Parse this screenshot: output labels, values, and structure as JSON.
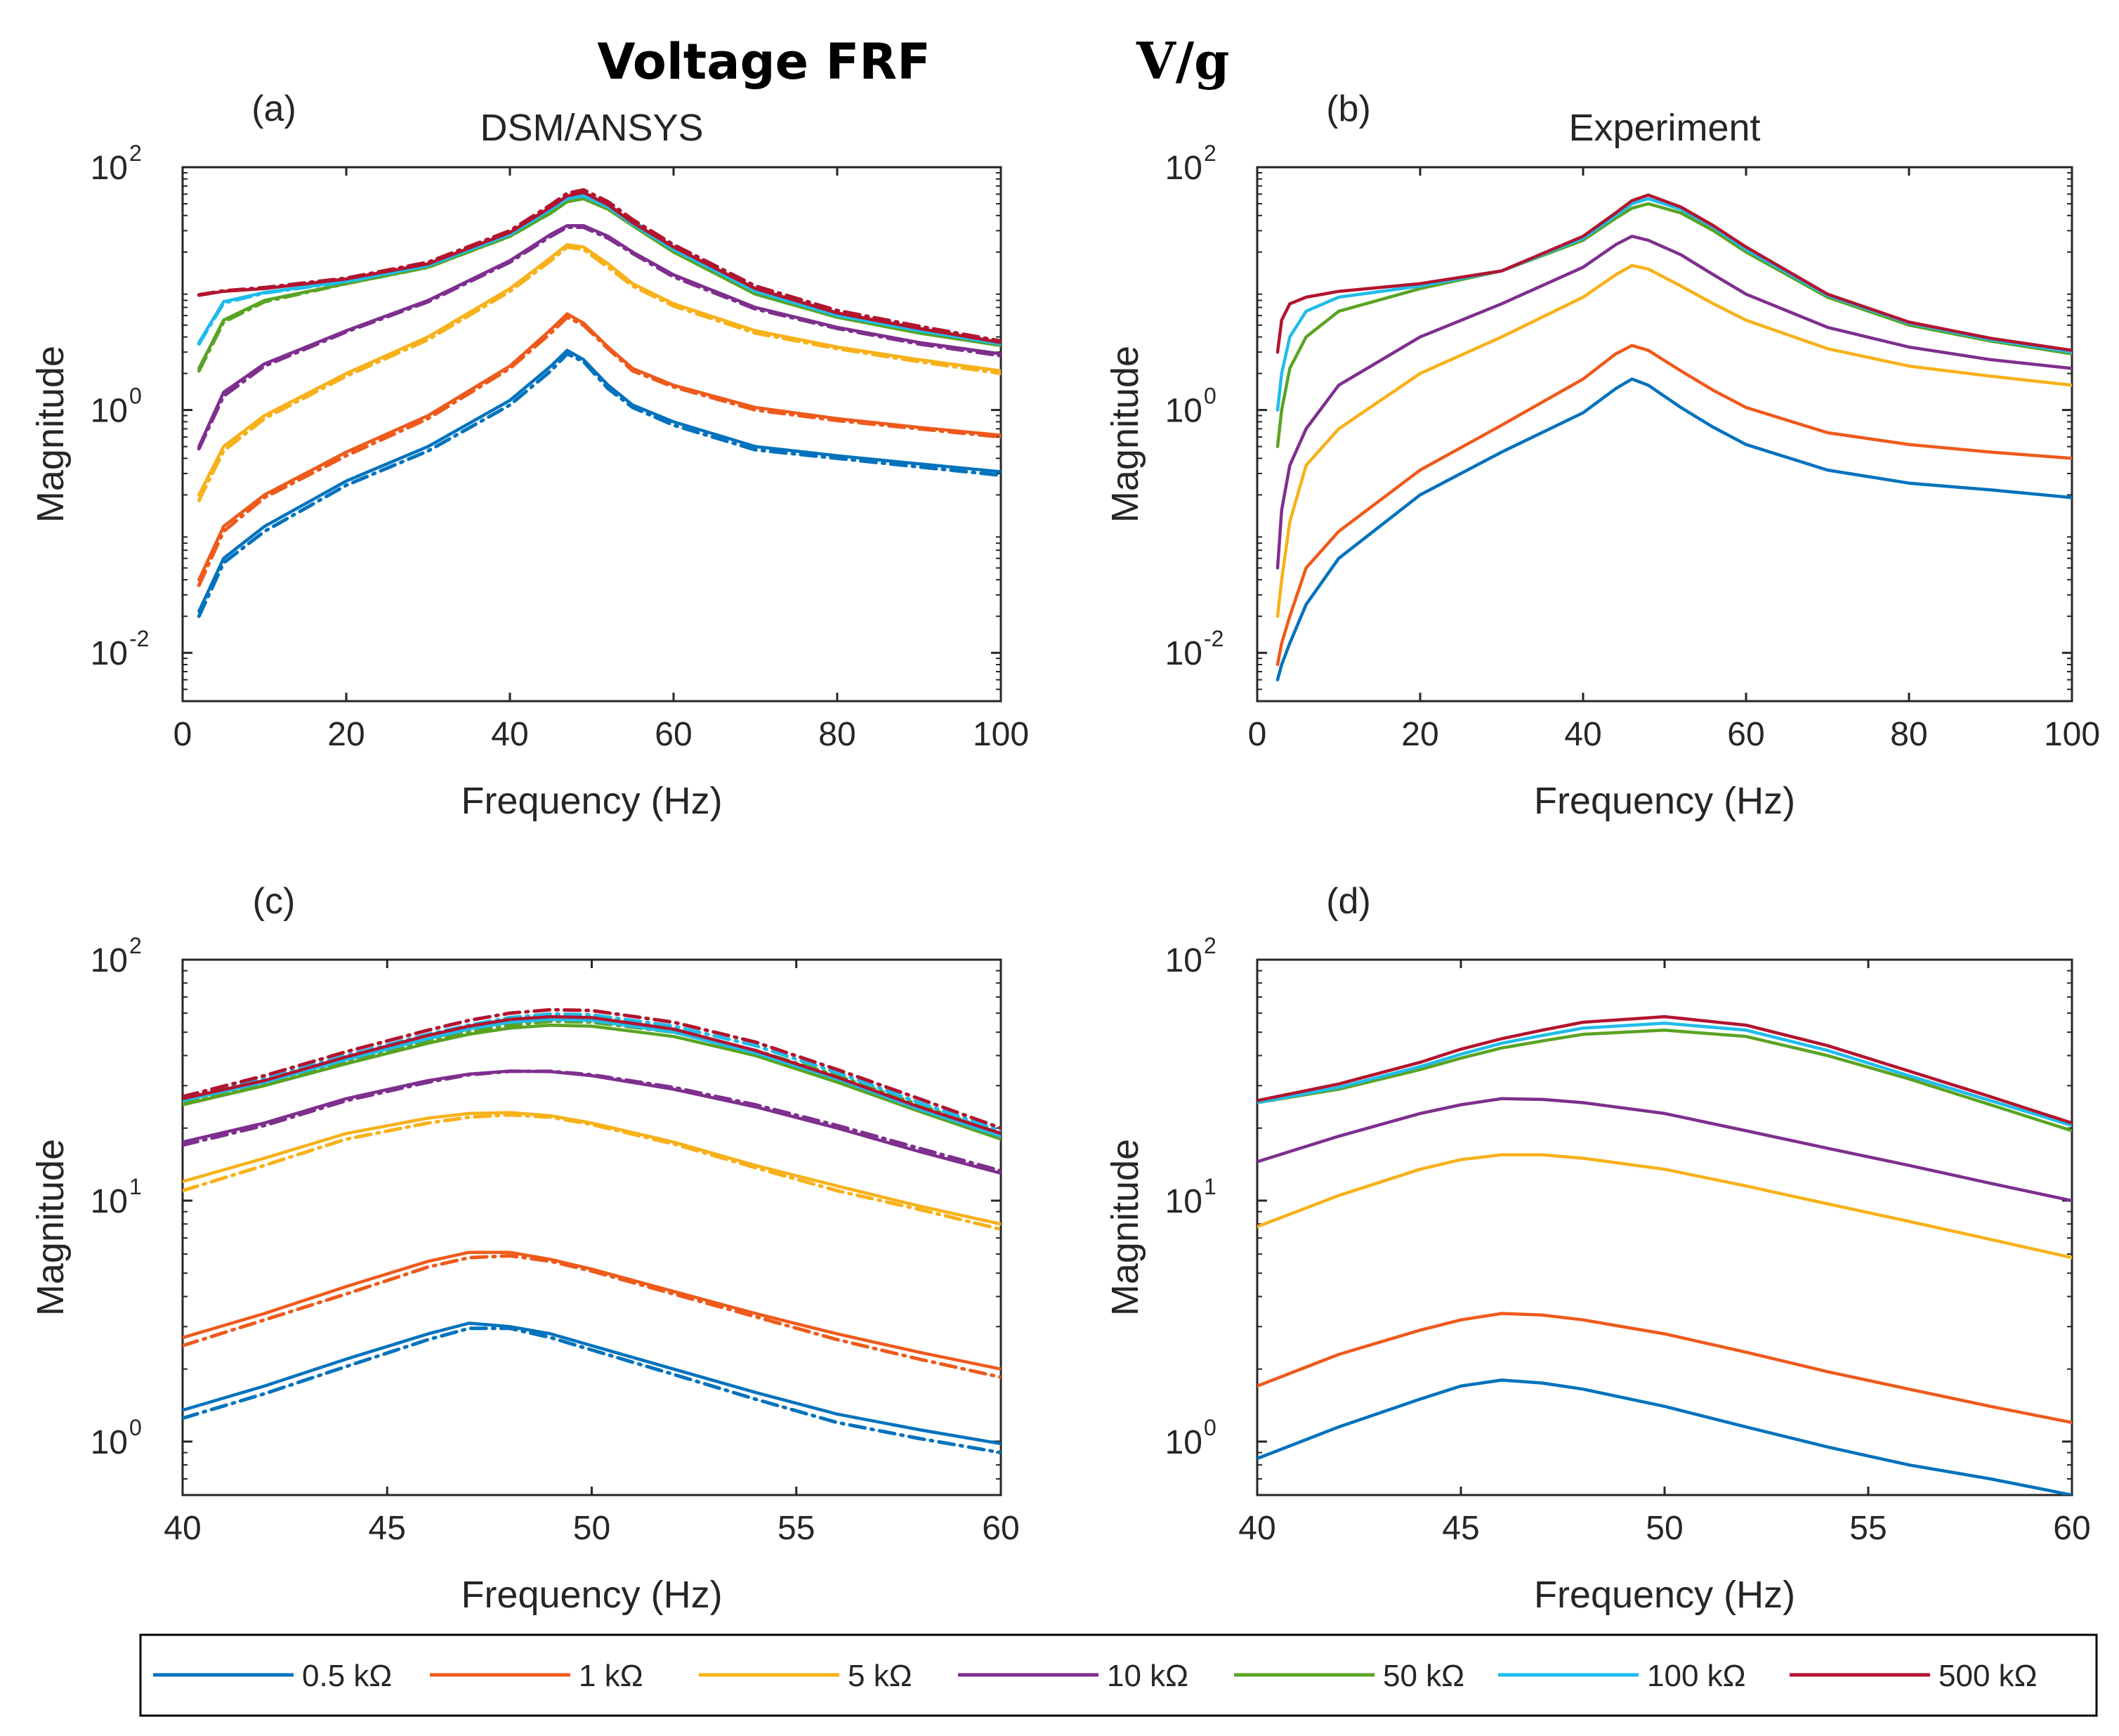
{
  "figure_title": "Voltage FRF",
  "figure_title_math": "V/g",
  "colors": {
    "0.5 kΩ": "#0072BD",
    "1 kΩ": "#EE5A1B",
    "5 kΩ": "#F7B11A",
    "10 kΩ": "#7E2F8E",
    "50 kΩ": "#5AA323",
    "100 kΩ": "#1FBCEA",
    "500 kΩ": "#B2142F"
  },
  "legend": [
    "0.5 kΩ",
    "1 kΩ",
    "5 kΩ",
    "10 kΩ",
    "50 kΩ",
    "100 kΩ",
    "500 kΩ"
  ],
  "chart_data": [
    {
      "id": "a",
      "panel_label": "(a)",
      "title": "DSM/ANSYS",
      "type": "line",
      "xlabel": "Frequency (Hz)",
      "ylabel": "Magnitude",
      "yscale": "log",
      "xlim": [
        0,
        100
      ],
      "ylim": [
        0.004,
        100
      ],
      "xticks": [
        "0",
        "20",
        "40",
        "60",
        "80",
        "100"
      ],
      "yticks": [
        {
          "base": "10",
          "exp": "-2",
          "value": 0.01
        },
        {
          "base": "10",
          "exp": "0",
          "value": 1
        },
        {
          "base": "10",
          "exp": "2",
          "value": 100
        }
      ],
      "x": [
        2,
        5,
        10,
        20,
        30,
        40,
        45,
        47,
        49,
        52,
        55,
        60,
        70,
        80,
        90,
        100
      ],
      "series": [
        {
          "name": "0.5 kΩ",
          "solid": [
            0.022,
            0.06,
            0.11,
            0.26,
            0.5,
            1.2,
            2.3,
            3.1,
            2.6,
            1.6,
            1.1,
            0.8,
            0.5,
            0.42,
            0.36,
            0.31
          ],
          "dashed": [
            0.02,
            0.055,
            0.1,
            0.24,
            0.46,
            1.1,
            2.1,
            2.9,
            2.5,
            1.5,
            1.05,
            0.75,
            0.47,
            0.4,
            0.34,
            0.29
          ]
        },
        {
          "name": "1 kΩ",
          "solid": [
            0.04,
            0.11,
            0.2,
            0.45,
            0.9,
            2.3,
            4.6,
            6.2,
            5.2,
            3.3,
            2.2,
            1.6,
            1.05,
            0.85,
            0.72,
            0.62
          ],
          "dashed": [
            0.036,
            0.1,
            0.19,
            0.42,
            0.85,
            2.2,
            4.3,
            5.8,
            5.0,
            3.2,
            2.1,
            1.55,
            1.0,
            0.82,
            0.7,
            0.6
          ]
        },
        {
          "name": "5 kΩ",
          "solid": [
            0.2,
            0.5,
            0.9,
            2.0,
            4.0,
            10.0,
            18.0,
            23.0,
            22.0,
            16.0,
            11.0,
            7.5,
            4.5,
            3.3,
            2.6,
            2.1
          ],
          "dashed": [
            0.18,
            0.46,
            0.85,
            1.9,
            3.8,
            9.5,
            17.0,
            22.0,
            21.0,
            15.0,
            10.5,
            7.2,
            4.3,
            3.2,
            2.5,
            2.0
          ]
        },
        {
          "name": "10 kΩ",
          "solid": [
            0.5,
            1.4,
            2.4,
            4.5,
            8.0,
            17.0,
            28.0,
            33.0,
            33.0,
            27.0,
            20.0,
            13.0,
            7.0,
            4.8,
            3.6,
            2.9
          ],
          "dashed": [
            0.48,
            1.3,
            2.3,
            4.4,
            7.8,
            16.5,
            27.0,
            32.0,
            32.0,
            26.0,
            19.5,
            12.5,
            6.8,
            4.7,
            3.5,
            2.8
          ]
        },
        {
          "name": "50 kΩ",
          "solid": [
            2.2,
            5.5,
            8.0,
            11.0,
            15.0,
            27.0,
            42.0,
            52.0,
            55.0,
            45.0,
            33.0,
            20.0,
            9.0,
            5.8,
            4.3,
            3.4
          ],
          "dashed": [
            2.1,
            5.3,
            7.8,
            11.0,
            15.0,
            27.0,
            42.0,
            52.0,
            56.0,
            47.0,
            35.0,
            21.0,
            9.5,
            6.0,
            4.5,
            3.5
          ]
        },
        {
          "name": "100 kΩ",
          "solid": [
            3.6,
            7.8,
            9.3,
            11.5,
            15.5,
            28.0,
            45.0,
            55.0,
            58.0,
            47.0,
            34.0,
            21.0,
            9.5,
            6.0,
            4.5,
            3.5
          ],
          "dashed": [
            3.5,
            7.6,
            9.2,
            11.4,
            15.5,
            28.0,
            45.0,
            56.0,
            60.0,
            49.0,
            36.0,
            22.0,
            10.0,
            6.3,
            4.7,
            3.6
          ]
        },
        {
          "name": "500 kΩ",
          "solid": [
            8.8,
            9.5,
            10.0,
            12.0,
            16.0,
            29.0,
            47.0,
            58.0,
            62.0,
            49.0,
            35.0,
            22.0,
            10.0,
            6.3,
            4.7,
            3.6
          ],
          "dashed": [
            8.9,
            9.6,
            10.2,
            12.2,
            16.5,
            30.0,
            49.0,
            61.0,
            65.0,
            52.0,
            37.0,
            23.0,
            10.5,
            6.6,
            4.9,
            3.7
          ]
        }
      ]
    },
    {
      "id": "b",
      "panel_label": "(b)",
      "title": "Experiment",
      "type": "line",
      "xlabel": "Frequency (Hz)",
      "ylabel": "Magnitude",
      "yscale": "log",
      "xlim": [
        0,
        100
      ],
      "ylim": [
        0.004,
        100
      ],
      "xticks": [
        "0",
        "20",
        "40",
        "60",
        "80",
        "100"
      ],
      "yticks": [
        {
          "base": "10",
          "exp": "-2",
          "value": 0.01
        },
        {
          "base": "10",
          "exp": "0",
          "value": 1
        },
        {
          "base": "10",
          "exp": "2",
          "value": 100
        }
      ],
      "x": [
        2.5,
        3,
        4,
        6,
        10,
        20,
        30,
        40,
        44,
        46,
        48,
        52,
        56,
        60,
        70,
        80,
        90,
        100
      ],
      "series": [
        {
          "name": "0.5 kΩ",
          "values": [
            0.006,
            0.008,
            0.012,
            0.025,
            0.06,
            0.2,
            0.45,
            0.95,
            1.5,
            1.8,
            1.6,
            1.05,
            0.72,
            0.52,
            0.32,
            0.25,
            0.22,
            0.19
          ]
        },
        {
          "name": "1 kΩ",
          "values": [
            0.008,
            0.012,
            0.02,
            0.05,
            0.1,
            0.32,
            0.75,
            1.8,
            2.9,
            3.4,
            3.1,
            2.1,
            1.45,
            1.05,
            0.65,
            0.52,
            0.45,
            0.4
          ]
        },
        {
          "name": "5 kΩ",
          "values": [
            0.02,
            0.04,
            0.12,
            0.35,
            0.7,
            2.0,
            4.0,
            8.5,
            13.0,
            15.5,
            14.5,
            10.5,
            7.5,
            5.5,
            3.2,
            2.3,
            1.9,
            1.6
          ]
        },
        {
          "name": "10 kΩ",
          "values": [
            0.05,
            0.15,
            0.35,
            0.7,
            1.6,
            4.0,
            7.5,
            15.0,
            23.0,
            27.0,
            25.0,
            19.0,
            13.0,
            9.0,
            4.8,
            3.3,
            2.6,
            2.2
          ]
        },
        {
          "name": "50 kΩ",
          "values": [
            0.5,
            1.0,
            2.2,
            4.0,
            6.5,
            10.0,
            14.0,
            25.0,
            38.0,
            46.0,
            50.0,
            42.0,
            30.0,
            20.0,
            8.5,
            5.0,
            3.7,
            2.9
          ]
        },
        {
          "name": "100 kΩ",
          "values": [
            1.0,
            2.0,
            4.0,
            6.5,
            8.5,
            10.5,
            14.0,
            26.0,
            40.0,
            50.0,
            55.0,
            45.0,
            32.0,
            21.0,
            8.8,
            5.2,
            3.8,
            3.0
          ]
        },
        {
          "name": "500 kΩ",
          "values": [
            3.0,
            5.5,
            7.5,
            8.5,
            9.5,
            11.0,
            14.0,
            27.0,
            42.0,
            53.0,
            59.0,
            47.0,
            33.0,
            22.0,
            9.0,
            5.3,
            3.9,
            3.1
          ]
        }
      ]
    },
    {
      "id": "c",
      "panel_label": "(c)",
      "title": "",
      "type": "line",
      "xlabel": "Frequency (Hz)",
      "ylabel": "Magnitude",
      "yscale": "log",
      "xlim": [
        40,
        60
      ],
      "ylim": [
        0.6,
        100
      ],
      "xticks": [
        "40",
        "45",
        "50",
        "55",
        "60"
      ],
      "yticks": [
        {
          "base": "10",
          "exp": "0",
          "value": 1
        },
        {
          "base": "10",
          "exp": "1",
          "value": 10
        },
        {
          "base": "10",
          "exp": "2",
          "value": 100
        }
      ],
      "x": [
        40,
        42,
        44,
        46,
        47,
        48,
        49,
        50,
        52,
        54,
        56,
        58,
        60
      ],
      "series": [
        {
          "name": "0.5 kΩ",
          "solid": [
            1.35,
            1.7,
            2.2,
            2.8,
            3.1,
            3.0,
            2.8,
            2.5,
            2.0,
            1.6,
            1.3,
            1.12,
            0.98
          ],
          "dashed": [
            1.25,
            1.58,
            2.05,
            2.65,
            2.95,
            2.95,
            2.7,
            2.4,
            1.9,
            1.5,
            1.2,
            1.03,
            0.9
          ]
        },
        {
          "name": "1 kΩ",
          "solid": [
            2.7,
            3.4,
            4.4,
            5.6,
            6.1,
            6.1,
            5.7,
            5.2,
            4.2,
            3.4,
            2.8,
            2.35,
            2.0
          ],
          "dashed": [
            2.5,
            3.2,
            4.1,
            5.3,
            5.8,
            5.9,
            5.6,
            5.1,
            4.1,
            3.3,
            2.65,
            2.2,
            1.85
          ]
        },
        {
          "name": "5 kΩ",
          "solid": [
            12.0,
            15.0,
            19.0,
            22.0,
            23.0,
            23.2,
            22.5,
            21.0,
            17.5,
            14.0,
            11.5,
            9.5,
            8.0
          ],
          "dashed": [
            11.0,
            14.0,
            18.0,
            21.0,
            22.2,
            22.7,
            22.2,
            20.7,
            17.2,
            13.7,
            11.0,
            9.2,
            7.6
          ]
        },
        {
          "name": "10 kΩ",
          "solid": [
            17.5,
            21.0,
            26.5,
            31.5,
            33.5,
            34.5,
            34.3,
            33.0,
            29.0,
            24.5,
            20.0,
            16.0,
            13.0
          ],
          "dashed": [
            17.0,
            20.5,
            26.0,
            31.0,
            33.3,
            34.4,
            34.4,
            33.3,
            29.5,
            25.0,
            20.5,
            16.5,
            13.3
          ]
        },
        {
          "name": "50 kΩ",
          "solid": [
            25.0,
            30.0,
            37.0,
            45.0,
            49.0,
            52.0,
            53.5,
            53.0,
            48.0,
            40.0,
            31.0,
            23.5,
            18.0
          ],
          "dashed": [
            25.5,
            30.5,
            38.0,
            46.0,
            50.0,
            53.5,
            55.5,
            55.0,
            50.0,
            42.0,
            33.0,
            25.0,
            19.0
          ]
        },
        {
          "name": "100 kΩ",
          "solid": [
            26.0,
            31.0,
            38.5,
            47.0,
            51.5,
            55.0,
            56.5,
            56.0,
            50.0,
            41.0,
            32.0,
            24.0,
            18.5
          ],
          "dashed": [
            26.5,
            32.0,
            40.0,
            49.0,
            53.5,
            57.5,
            59.5,
            59.0,
            53.0,
            44.0,
            34.0,
            25.5,
            19.5
          ]
        },
        {
          "name": "500 kΩ",
          "solid": [
            26.5,
            31.5,
            39.5,
            48.5,
            53.0,
            56.5,
            58.0,
            57.5,
            51.5,
            42.0,
            32.5,
            24.5,
            19.0
          ],
          "dashed": [
            27.0,
            33.0,
            41.5,
            51.0,
            56.0,
            60.0,
            62.0,
            61.5,
            55.0,
            45.5,
            35.0,
            26.5,
            20.0
          ]
        }
      ]
    },
    {
      "id": "d",
      "panel_label": "(d)",
      "title": "",
      "type": "line",
      "xlabel": "Frequency (Hz)",
      "ylabel": "Magnitude",
      "yscale": "log",
      "xlim": [
        40,
        60
      ],
      "ylim": [
        0.6,
        100
      ],
      "xticks": [
        "40",
        "45",
        "50",
        "55",
        "60"
      ],
      "yticks": [
        {
          "base": "10",
          "exp": "0",
          "value": 1
        },
        {
          "base": "10",
          "exp": "1",
          "value": 10
        },
        {
          "base": "10",
          "exp": "2",
          "value": 100
        }
      ],
      "x": [
        40,
        42,
        44,
        45,
        46,
        47,
        48,
        50,
        52,
        54,
        56,
        58,
        60
      ],
      "series": [
        {
          "name": "0.5 kΩ",
          "values": [
            0.85,
            1.15,
            1.5,
            1.7,
            1.8,
            1.75,
            1.65,
            1.4,
            1.15,
            0.95,
            0.8,
            0.7,
            0.6
          ]
        },
        {
          "name": "1 kΩ",
          "values": [
            1.7,
            2.3,
            2.9,
            3.2,
            3.4,
            3.35,
            3.2,
            2.8,
            2.35,
            1.95,
            1.65,
            1.4,
            1.2
          ]
        },
        {
          "name": "5 kΩ",
          "values": [
            7.8,
            10.5,
            13.5,
            14.8,
            15.5,
            15.5,
            15.0,
            13.5,
            11.5,
            9.7,
            8.2,
            6.9,
            5.8
          ]
        },
        {
          "name": "10 kΩ",
          "values": [
            14.5,
            18.5,
            23.0,
            25.0,
            26.5,
            26.3,
            25.5,
            23.0,
            19.5,
            16.5,
            14.0,
            11.8,
            10.0
          ]
        },
        {
          "name": "50 kΩ",
          "values": [
            25.5,
            29.0,
            35.0,
            39.0,
            43.0,
            46.0,
            49.0,
            51.0,
            48.0,
            40.0,
            32.0,
            25.0,
            19.5
          ]
        },
        {
          "name": "100 kΩ",
          "values": [
            25.5,
            29.5,
            36.0,
            40.5,
            45.0,
            48.5,
            52.0,
            54.5,
            51.0,
            42.0,
            33.0,
            26.0,
            20.5
          ]
        },
        {
          "name": "500 kΩ",
          "values": [
            26.0,
            30.5,
            37.5,
            42.5,
            47.0,
            51.0,
            55.0,
            58.0,
            53.5,
            44.0,
            34.5,
            27.0,
            21.0
          ]
        }
      ]
    }
  ]
}
